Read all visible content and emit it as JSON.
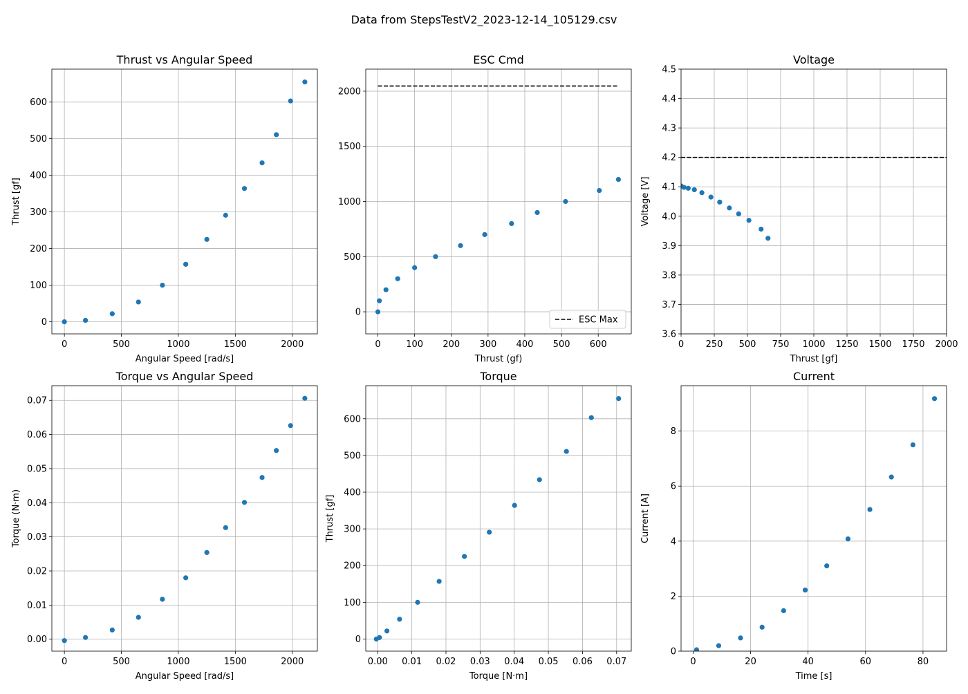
{
  "suptitle": "Data from StepsTestV2_2023-12-14_105129.csv",
  "colors": {
    "points": "#1f77b4",
    "reference_line": "#000000",
    "grid": "#b0b0b0"
  },
  "chart_data": [
    {
      "type": "scatter",
      "title": "Thrust vs Angular Speed",
      "xlabel": "Angular Speed [rad/s]",
      "ylabel": "Thrust [gf]",
      "xlim": [
        -110,
        2220
      ],
      "ylim": [
        -33,
        690
      ],
      "xticks": [
        0,
        500,
        1000,
        1500,
        2000
      ],
      "yticks": [
        0,
        100,
        200,
        300,
        400,
        500,
        600
      ],
      "xtick_labels": [
        "0",
        "500",
        "1000",
        "1500",
        "2000"
      ],
      "ytick_labels": [
        "0",
        "100",
        "200",
        "300",
        "400",
        "500",
        "600"
      ],
      "grid": true,
      "x": [
        0,
        185,
        420,
        650,
        860,
        1065,
        1250,
        1415,
        1580,
        1735,
        1860,
        1985,
        2110
      ],
      "y": [
        0,
        4,
        22,
        54,
        100,
        157,
        225,
        291,
        364,
        434,
        511,
        603,
        655
      ]
    },
    {
      "type": "scatter",
      "title": "ESC Cmd",
      "xlabel": "Thrust (gf)",
      "ylabel": "",
      "xlim": [
        -33,
        690
      ],
      "ylim": [
        -200,
        2200
      ],
      "xticks": [
        0,
        100,
        200,
        300,
        400,
        500,
        600
      ],
      "yticks": [
        0,
        500,
        1000,
        1500,
        2000
      ],
      "xtick_labels": [
        "0",
        "100",
        "200",
        "300",
        "400",
        "500",
        "600"
      ],
      "ytick_labels": [
        "0",
        "500",
        "1000",
        "1500",
        "2000"
      ],
      "grid": true,
      "x": [
        0,
        4,
        22,
        54,
        100,
        157,
        225,
        291,
        364,
        434,
        511,
        603,
        655
      ],
      "y": [
        0,
        100,
        200,
        300,
        400,
        500,
        600,
        700,
        800,
        900,
        1000,
        1100,
        1200
      ],
      "reference_line": {
        "name": "ESC Max",
        "y": 2047,
        "x_range": [
          0,
          655
        ],
        "style": "dashed"
      },
      "legend": {
        "position": "lower-right",
        "entries": [
          "ESC Max"
        ]
      }
    },
    {
      "type": "scatter",
      "title": "Voltage",
      "xlabel": "Thrust [gf]",
      "ylabel": "Voltage [V]",
      "xlim": [
        0,
        2000
      ],
      "ylim": [
        3.6,
        4.5
      ],
      "xticks": [
        0,
        250,
        500,
        750,
        1000,
        1250,
        1500,
        1750,
        2000
      ],
      "yticks": [
        3.6,
        3.7,
        3.8,
        3.9,
        4.0,
        4.1,
        4.2,
        4.3,
        4.4,
        4.5
      ],
      "xtick_labels": [
        "0",
        "250",
        "500",
        "750",
        "1000",
        "1250",
        "1500",
        "1750",
        "2000"
      ],
      "ytick_labels": [
        "3.6",
        "3.7",
        "3.8",
        "3.9",
        "4.0",
        "4.1",
        "4.2",
        "4.3",
        "4.4",
        "4.5"
      ],
      "grid": true,
      "x": [
        0,
        22,
        54,
        100,
        157,
        225,
        291,
        364,
        434,
        511,
        603,
        655
      ],
      "y": [
        4.103,
        4.098,
        4.095,
        4.09,
        4.08,
        4.065,
        4.048,
        4.028,
        4.008,
        3.986,
        3.956,
        3.925
      ],
      "reference_line": {
        "y": 4.2,
        "x_range": [
          0,
          2000
        ],
        "style": "dashed"
      }
    },
    {
      "type": "scatter",
      "title": "Torque vs Angular Speed",
      "xlabel": "Angular Speed [rad/s]",
      "ylabel": "Torque (N·m)",
      "xlim": [
        -110,
        2220
      ],
      "ylim": [
        -0.0035,
        0.0743
      ],
      "xticks": [
        0,
        500,
        1000,
        1500,
        2000
      ],
      "yticks": [
        0,
        0.01,
        0.02,
        0.03,
        0.04,
        0.05,
        0.06,
        0.07
      ],
      "xtick_labels": [
        "0",
        "500",
        "1000",
        "1500",
        "2000"
      ],
      "ytick_labels": [
        "0.00",
        "0.01",
        "0.02",
        "0.03",
        "0.04",
        "0.05",
        "0.06",
        "0.07"
      ],
      "grid": true,
      "x": [
        0,
        185,
        420,
        650,
        860,
        1065,
        1250,
        1415,
        1580,
        1735,
        1860,
        1985,
        2110
      ],
      "y": [
        -0.0004,
        0.0005,
        0.0027,
        0.0064,
        0.0117,
        0.018,
        0.0254,
        0.0327,
        0.0401,
        0.0474,
        0.0553,
        0.0626,
        0.0706
      ]
    },
    {
      "type": "scatter",
      "title": "Torque",
      "xlabel": "Torque [N·m]",
      "ylabel": "Thrust [gf]",
      "xlim": [
        -0.0035,
        0.0743
      ],
      "ylim": [
        -33,
        690
      ],
      "xticks": [
        0,
        0.01,
        0.02,
        0.03,
        0.04,
        0.05,
        0.06,
        0.07
      ],
      "yticks": [
        0,
        100,
        200,
        300,
        400,
        500,
        600
      ],
      "xtick_labels": [
        "0.00",
        "0.01",
        "0.02",
        "0.03",
        "0.04",
        "0.05",
        "0.06",
        "0.07"
      ],
      "ytick_labels": [
        "0",
        "100",
        "200",
        "300",
        "400",
        "500",
        "600"
      ],
      "grid": true,
      "x": [
        -0.0004,
        0.0005,
        0.0027,
        0.0064,
        0.0117,
        0.018,
        0.0254,
        0.0327,
        0.0401,
        0.0474,
        0.0553,
        0.0626,
        0.0706
      ],
      "y": [
        0,
        4,
        22,
        54,
        100,
        157,
        225,
        291,
        364,
        434,
        511,
        603,
        655
      ]
    },
    {
      "type": "scatter",
      "title": "Current",
      "xlabel": "Time [s]",
      "ylabel": "Current [A]",
      "xlim": [
        -4.2,
        88.2
      ],
      "ylim": [
        0,
        9.65
      ],
      "xticks": [
        0,
        20,
        40,
        60,
        80
      ],
      "yticks": [
        0,
        2,
        4,
        6,
        8
      ],
      "xtick_labels": [
        "0",
        "20",
        "40",
        "60",
        "80"
      ],
      "ytick_labels": [
        "0",
        "2",
        "4",
        "6",
        "8"
      ],
      "grid": true,
      "x": [
        1.2,
        8.9,
        16.5,
        24.0,
        31.5,
        39.0,
        46.5,
        53.9,
        61.5,
        69.0,
        76.5,
        84.0
      ],
      "y": [
        0.05,
        0.2,
        0.48,
        0.87,
        1.47,
        2.22,
        3.1,
        4.08,
        5.15,
        6.33,
        7.5,
        9.18
      ]
    }
  ]
}
